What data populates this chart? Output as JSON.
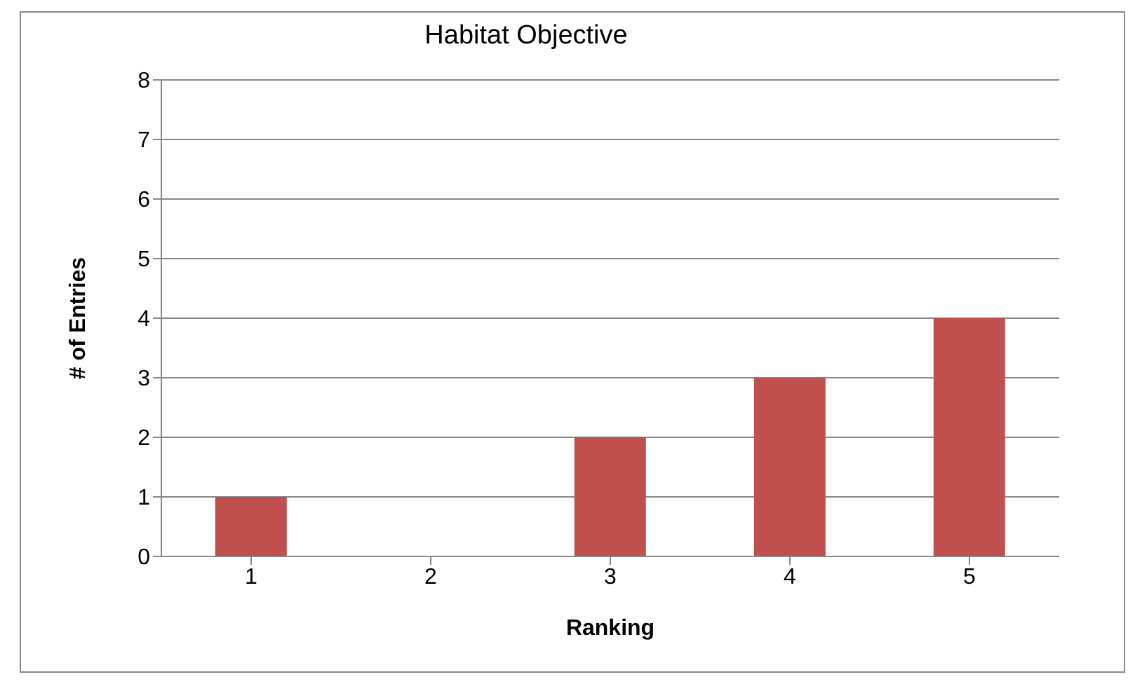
{
  "chart_data": {
    "type": "bar",
    "title": "Habitat Objective",
    "xlabel": "Ranking",
    "ylabel": "# of Entries",
    "categories": [
      "1",
      "2",
      "3",
      "4",
      "5"
    ],
    "values": [
      1,
      0,
      2,
      3,
      4
    ],
    "color": "#c0504d",
    "ylim": [
      0,
      8
    ],
    "yticks": [
      0,
      1,
      2,
      3,
      4,
      5,
      6,
      7,
      8
    ],
    "grid": "y"
  }
}
